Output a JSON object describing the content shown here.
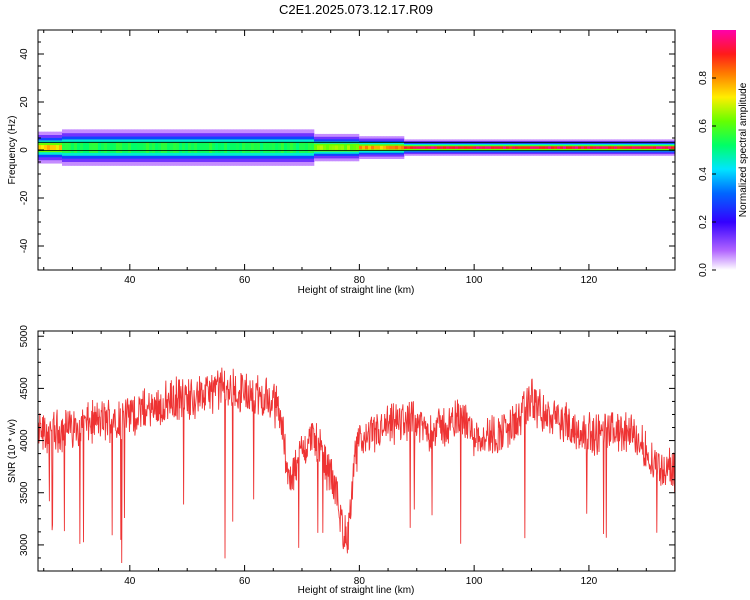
{
  "figure_title": "C2E1.2025.073.12.17.R09",
  "chart_data": [
    {
      "type": "heatmap",
      "title": "",
      "xlabel": "Height of straight line (km)",
      "ylabel": "Frequency (Hz)",
      "xlim": [
        24,
        135
      ],
      "ylim": [
        -50,
        50
      ],
      "x_ticks": [
        40,
        60,
        80,
        100,
        120
      ],
      "y_ticks": [
        -40,
        -20,
        0,
        20,
        40
      ],
      "colorbar": {
        "label": "Normalized spectral amplitude",
        "range": [
          0,
          1
        ],
        "ticks": [
          "0.0",
          "0.2",
          "0.4",
          "0.6",
          "0.8"
        ],
        "colormap": [
          "#ffffff",
          "#7f00ff",
          "#0000ff",
          "#00ffff",
          "#00ff00",
          "#ffff00",
          "#ff7f00",
          "#ff0000",
          "#ff00ff"
        ]
      },
      "band": {
        "center_hz": 1,
        "segments": [
          {
            "x_start": 24,
            "x_end": 28,
            "peak_amplitude": 0.75,
            "halfwidth_hz": 3.5
          },
          {
            "x_start": 28,
            "x_end": 72,
            "peak_amplitude": 0.55,
            "halfwidth_hz": 4
          },
          {
            "x_start": 72,
            "x_end": 80,
            "peak_amplitude": 0.65,
            "halfwidth_hz": 3
          },
          {
            "x_start": 80,
            "x_end": 88,
            "peak_amplitude": 0.8,
            "halfwidth_hz": 2.5
          },
          {
            "x_start": 88,
            "x_end": 135,
            "peak_amplitude": 0.95,
            "halfwidth_hz": 1.8
          }
        ]
      }
    },
    {
      "type": "line",
      "title": "",
      "xlabel": "Height of straight line (km)",
      "ylabel": "SNR (10 * v/v)",
      "xlim": [
        24,
        135
      ],
      "ylim": [
        2750,
        5050
      ],
      "x_ticks": [
        40,
        60,
        80,
        100,
        120
      ],
      "y_ticks": [
        3000,
        3500,
        4000,
        4500,
        5000
      ],
      "series": [
        {
          "color": "#ee3333",
          "x": [
            24,
            28,
            32,
            36,
            40,
            44,
            48,
            52,
            56,
            60,
            64,
            66,
            68,
            70,
            72,
            74,
            76,
            77,
            78,
            79,
            80,
            84,
            88,
            92,
            96,
            98,
            100,
            104,
            108,
            110,
            112,
            116,
            120,
            124,
            128,
            130,
            132,
            135
          ],
          "y": [
            4050,
            4100,
            4150,
            4200,
            4250,
            4300,
            4400,
            4420,
            4500,
            4450,
            4400,
            4300,
            3600,
            3900,
            4050,
            3800,
            3500,
            3200,
            3050,
            3700,
            4000,
            4100,
            4200,
            4100,
            4150,
            4250,
            4050,
            4050,
            4200,
            4400,
            4250,
            4150,
            4050,
            4100,
            4050,
            3900,
            3750,
            3700
          ],
          "noise": 180,
          "low_spikes_min": [
            2800,
            2900,
            2950,
            3000,
            3050,
            3100
          ]
        }
      ]
    }
  ]
}
